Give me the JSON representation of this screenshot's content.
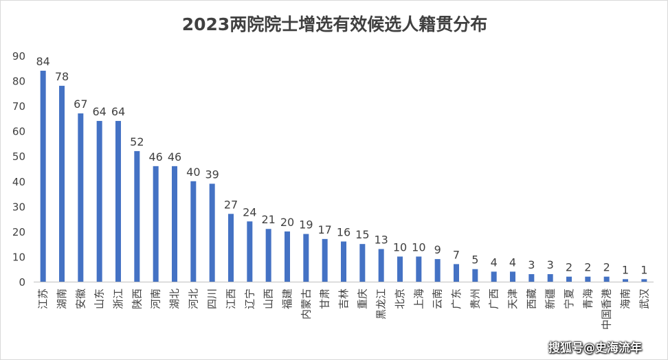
{
  "chart_data": {
    "type": "bar",
    "title": "2023两院院士增选有效候选人籍贯分布",
    "categories": [
      "江苏",
      "湖南",
      "安徽",
      "山东",
      "浙江",
      "陕西",
      "河南",
      "湖北",
      "河北",
      "四川",
      "江西",
      "辽宁",
      "山西",
      "福建",
      "内蒙古",
      "甘肃",
      "吉林",
      "重庆",
      "黑龙江",
      "北京",
      "上海",
      "云南",
      "广东",
      "贵州",
      "广西",
      "天津",
      "西藏",
      "新疆",
      "宁夏",
      "青海",
      "中国香港",
      "海南",
      "武汉"
    ],
    "values": [
      84,
      78,
      67,
      64,
      64,
      52,
      46,
      46,
      40,
      39,
      27,
      24,
      21,
      20,
      19,
      17,
      16,
      15,
      13,
      10,
      10,
      9,
      7,
      5,
      4,
      4,
      3,
      3,
      2,
      2,
      2,
      1,
      1
    ],
    "ylim": [
      0,
      90
    ],
    "yticks": [
      0,
      10,
      20,
      30,
      40,
      50,
      60,
      70,
      80,
      90
    ],
    "xlabel": "",
    "ylabel": "",
    "grid": false,
    "legend": "none",
    "bar_color": "#4472C4"
  },
  "watermark": "搜狐号@史海流年"
}
